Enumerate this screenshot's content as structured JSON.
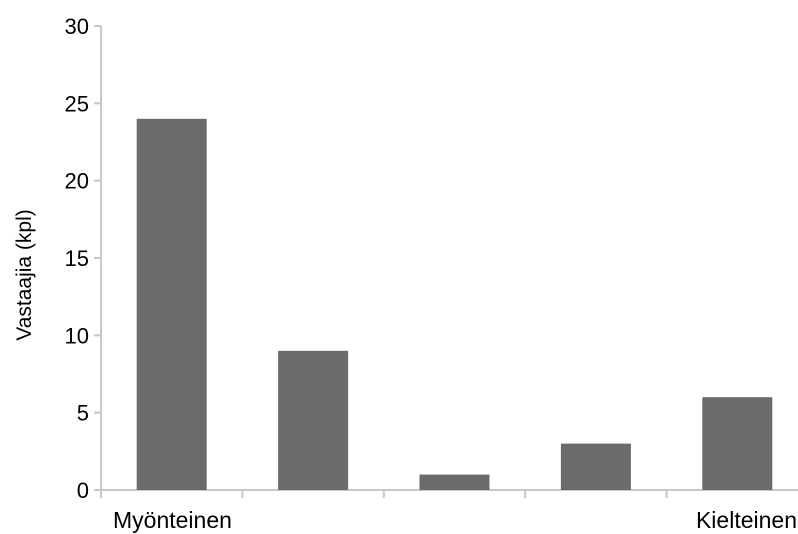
{
  "chart_data": {
    "type": "bar",
    "categories": [
      "Myönteinen",
      "",
      "",
      "",
      "Kielteinen"
    ],
    "values": [
      24,
      9,
      1,
      3,
      6
    ],
    "title": "",
    "xlabel": "",
    "ylabel": "Vastaajia (kpl)",
    "ylim": [
      0,
      30
    ],
    "yticks": [
      0,
      5,
      10,
      15,
      20,
      25,
      30
    ],
    "grid": false,
    "legend": "none",
    "colors": {
      "bar": "#6b6b6b",
      "axis": "#c8c8c8"
    }
  }
}
